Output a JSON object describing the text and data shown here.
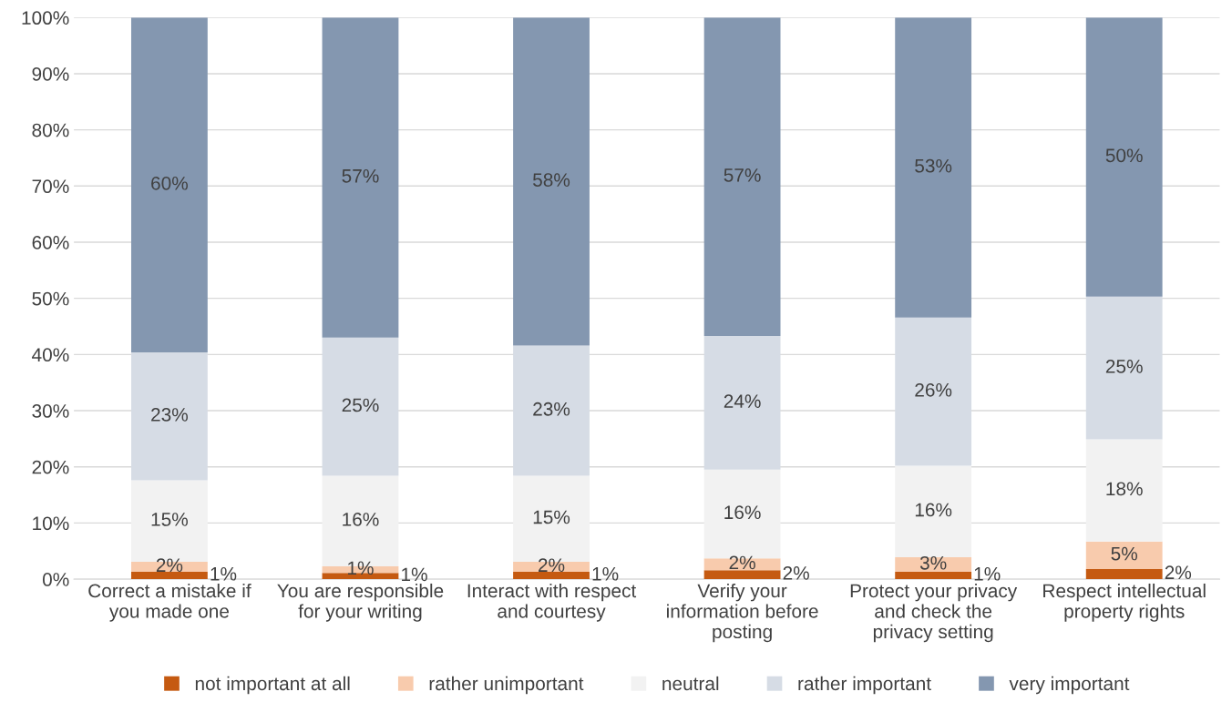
{
  "chart_data": {
    "type": "bar",
    "stacked": true,
    "categories": [
      "Correct a mistake if\nyou made one",
      "You are responsible\nfor your writing",
      "Interact with respect\nand courtesy",
      "Verify your\ninformation before\nposting",
      "Protect your privacy\nand check the\nprivacy setting",
      "Respect intellectual\nproperty rights"
    ],
    "series": [
      {
        "name": "not important at all",
        "color": "#c55a11",
        "values": [
          1.3,
          1.1,
          1.3,
          1.6,
          1.3,
          1.8
        ],
        "value_labels": [
          "1%",
          "1%",
          "1%",
          "2%",
          "1%",
          "2%"
        ]
      },
      {
        "name": "rather unimportant",
        "color": "#f8cbad",
        "values": [
          1.8,
          1.2,
          1.8,
          2.1,
          2.6,
          4.9
        ],
        "value_labels": [
          "2%",
          "1%",
          "2%",
          "2%",
          "3%",
          "5%"
        ]
      },
      {
        "name": "neutral",
        "color": "#f2f2f2",
        "values": [
          14.5,
          16.1,
          15.3,
          15.8,
          16.3,
          18.2
        ],
        "value_labels": [
          "15%",
          "16%",
          "15%",
          "16%",
          "16%",
          "18%"
        ]
      },
      {
        "name": "rather important",
        "color": "#d6dce5",
        "values": [
          22.8,
          24.6,
          23.2,
          23.8,
          26.4,
          25.4
        ],
        "value_labels": [
          "23%",
          "25%",
          "23%",
          "24%",
          "26%",
          "25%"
        ]
      },
      {
        "name": "very important",
        "color": "#8497b0",
        "values": [
          59.6,
          57.0,
          58.4,
          56.7,
          53.4,
          49.7
        ],
        "value_labels": [
          "60%",
          "57%",
          "58%",
          "57%",
          "53%",
          "50%"
        ]
      }
    ],
    "ylim": [
      0,
      100
    ],
    "yticks": [
      {
        "value": 0,
        "label": "0%"
      },
      {
        "value": 10,
        "label": "10%"
      },
      {
        "value": 20,
        "label": "20%"
      },
      {
        "value": 30,
        "label": "30%"
      },
      {
        "value": 40,
        "label": "40%"
      },
      {
        "value": 50,
        "label": "50%"
      },
      {
        "value": 60,
        "label": "60%"
      },
      {
        "value": 70,
        "label": "70%"
      },
      {
        "value": 80,
        "label": "80%"
      },
      {
        "value": 90,
        "label": "90%"
      },
      {
        "value": 100,
        "label": "100%"
      }
    ],
    "grid": "y",
    "legend": "bottom"
  }
}
